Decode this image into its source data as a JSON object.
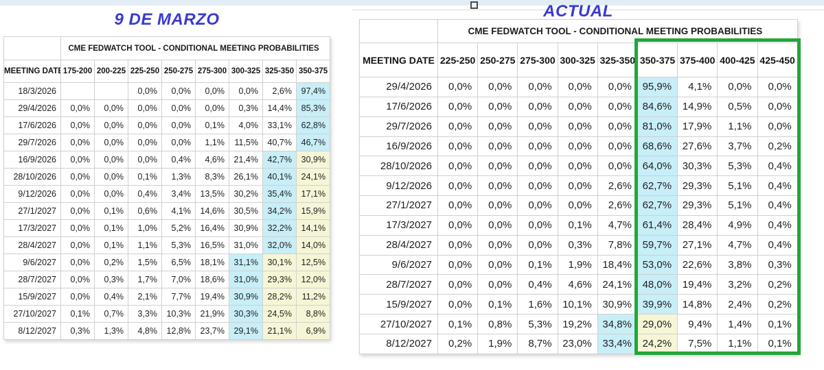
{
  "colors": {
    "title_blue": "#3a3bd0",
    "highlight_blue": "#c8eef8",
    "highlight_yellow": "#f6f6d7",
    "green_box": "#22a738",
    "top_strip": "#e2ecf4"
  },
  "chart_data": [
    {
      "type": "table",
      "title": "9 DE MARZO",
      "subtitle": "CME FEDWATCH TOOL - CONDITIONAL MEETING PROBABILITIES",
      "date_header": "MEETING DATE",
      "rate_columns": [
        "175-200",
        "200-225",
        "225-250",
        "250-275",
        "275-300",
        "300-325",
        "325-350",
        "350-375"
      ],
      "rows": [
        {
          "date": "18/3/2026",
          "values": [
            "",
            "",
            "0,0%",
            "0,0%",
            "0,0%",
            "0,0%",
            "2,6%",
            "97,4%"
          ],
          "hl": [
            "",
            "",
            "",
            "",
            "",
            "",
            "",
            "b"
          ]
        },
        {
          "date": "29/4/2026",
          "values": [
            "0,0%",
            "0,0%",
            "0,0%",
            "0,0%",
            "0,0%",
            "0,3%",
            "14,4%",
            "85,3%"
          ],
          "hl": [
            "",
            "",
            "",
            "",
            "",
            "",
            "",
            "b"
          ]
        },
        {
          "date": "17/6/2026",
          "values": [
            "0,0%",
            "0,0%",
            "0,0%",
            "0,0%",
            "0,1%",
            "4,0%",
            "33,1%",
            "62,8%"
          ],
          "hl": [
            "",
            "",
            "",
            "",
            "",
            "",
            "",
            "b"
          ]
        },
        {
          "date": "29/7/2026",
          "values": [
            "0,0%",
            "0,0%",
            "0,0%",
            "0,0%",
            "1,1%",
            "11,5%",
            "40,7%",
            "46,7%"
          ],
          "hl": [
            "",
            "",
            "",
            "",
            "",
            "",
            "",
            "b"
          ]
        },
        {
          "date": "16/9/2026",
          "values": [
            "0,0%",
            "0,0%",
            "0,0%",
            "0,4%",
            "4,6%",
            "21,4%",
            "42,7%",
            "30,9%"
          ],
          "hl": [
            "",
            "",
            "",
            "",
            "",
            "",
            "b",
            "y"
          ]
        },
        {
          "date": "28/10/2026",
          "values": [
            "0,0%",
            "0,0%",
            "0,1%",
            "1,3%",
            "8,3%",
            "26,1%",
            "40,1%",
            "24,1%"
          ],
          "hl": [
            "",
            "",
            "",
            "",
            "",
            "",
            "b",
            "y"
          ]
        },
        {
          "date": "9/12/2026",
          "values": [
            "0,0%",
            "0,0%",
            "0,4%",
            "3,4%",
            "13,5%",
            "30,2%",
            "35,4%",
            "17,1%"
          ],
          "hl": [
            "",
            "",
            "",
            "",
            "",
            "",
            "b",
            "y"
          ]
        },
        {
          "date": "27/1/2027",
          "values": [
            "0,0%",
            "0,1%",
            "0,6%",
            "4,1%",
            "14,6%",
            "30,5%",
            "34,2%",
            "15,9%"
          ],
          "hl": [
            "",
            "",
            "",
            "",
            "",
            "",
            "b",
            "y"
          ]
        },
        {
          "date": "17/3/2027",
          "values": [
            "0,0%",
            "0,1%",
            "1,0%",
            "5,2%",
            "16,4%",
            "30,9%",
            "32,2%",
            "14,1%"
          ],
          "hl": [
            "",
            "",
            "",
            "",
            "",
            "",
            "b",
            "y"
          ]
        },
        {
          "date": "28/4/2027",
          "values": [
            "0,0%",
            "0,1%",
            "1,1%",
            "5,3%",
            "16,5%",
            "31,0%",
            "32,0%",
            "14,0%"
          ],
          "hl": [
            "",
            "",
            "",
            "",
            "",
            "",
            "b",
            "y"
          ]
        },
        {
          "date": "9/6/2027",
          "values": [
            "0,0%",
            "0,2%",
            "1,5%",
            "6,5%",
            "18,1%",
            "31,1%",
            "30,1%",
            "12,5%"
          ],
          "hl": [
            "",
            "",
            "",
            "",
            "",
            "b",
            "y",
            "y"
          ]
        },
        {
          "date": "28/7/2027",
          "values": [
            "0,0%",
            "0,3%",
            "1,7%",
            "7,0%",
            "18,6%",
            "31,0%",
            "29,3%",
            "12,0%"
          ],
          "hl": [
            "",
            "",
            "",
            "",
            "",
            "b",
            "y",
            "y"
          ]
        },
        {
          "date": "15/9/2027",
          "values": [
            "0,0%",
            "0,4%",
            "2,1%",
            "7,7%",
            "19,4%",
            "30,9%",
            "28,2%",
            "11,2%"
          ],
          "hl": [
            "",
            "",
            "",
            "",
            "",
            "b",
            "y",
            "y"
          ]
        },
        {
          "date": "27/10/2027",
          "values": [
            "0,1%",
            "0,7%",
            "3,3%",
            "10,3%",
            "21,9%",
            "30,3%",
            "24,5%",
            "8,8%"
          ],
          "hl": [
            "",
            "",
            "",
            "",
            "",
            "b",
            "y",
            "y"
          ]
        },
        {
          "date": "8/12/2027",
          "values": [
            "0,3%",
            "1,3%",
            "4,8%",
            "12,8%",
            "23,7%",
            "29,1%",
            "21,1%",
            "6,9%"
          ],
          "hl": [
            "",
            "",
            "",
            "",
            "",
            "b",
            "y",
            "y"
          ]
        }
      ]
    },
    {
      "type": "table",
      "title": "ACTUAL",
      "subtitle": "CME FEDWATCH TOOL - CONDITIONAL MEETING PROBABILITIES",
      "date_header": "MEETING DATE",
      "rate_columns": [
        "225-250",
        "250-275",
        "275-300",
        "300-325",
        "325-350",
        "350-375",
        "375-400",
        "400-425",
        "425-450"
      ],
      "rows": [
        {
          "date": "29/4/2026",
          "values": [
            "0,0%",
            "0,0%",
            "0,0%",
            "0,0%",
            "0,0%",
            "95,9%",
            "4,1%",
            "0,0%",
            "0,0%"
          ],
          "hl": [
            "",
            "",
            "",
            "",
            "",
            "b",
            "",
            "",
            ""
          ]
        },
        {
          "date": "17/6/2026",
          "values": [
            "0,0%",
            "0,0%",
            "0,0%",
            "0,0%",
            "0,0%",
            "84,6%",
            "14,9%",
            "0,5%",
            "0,0%"
          ],
          "hl": [
            "",
            "",
            "",
            "",
            "",
            "b",
            "",
            "",
            ""
          ]
        },
        {
          "date": "29/7/2026",
          "values": [
            "0,0%",
            "0,0%",
            "0,0%",
            "0,0%",
            "0,0%",
            "81,0%",
            "17,9%",
            "1,1%",
            "0,0%"
          ],
          "hl": [
            "",
            "",
            "",
            "",
            "",
            "b",
            "",
            "",
            ""
          ]
        },
        {
          "date": "16/9/2026",
          "values": [
            "0,0%",
            "0,0%",
            "0,0%",
            "0,0%",
            "0,0%",
            "68,6%",
            "27,6%",
            "3,7%",
            "0,2%"
          ],
          "hl": [
            "",
            "",
            "",
            "",
            "",
            "b",
            "",
            "",
            ""
          ]
        },
        {
          "date": "28/10/2026",
          "values": [
            "0,0%",
            "0,0%",
            "0,0%",
            "0,0%",
            "0,0%",
            "64,0%",
            "30,3%",
            "5,3%",
            "0,4%"
          ],
          "hl": [
            "",
            "",
            "",
            "",
            "",
            "b",
            "",
            "",
            ""
          ]
        },
        {
          "date": "9/12/2026",
          "values": [
            "0,0%",
            "0,0%",
            "0,0%",
            "0,0%",
            "2,6%",
            "62,7%",
            "29,3%",
            "5,1%",
            "0,4%"
          ],
          "hl": [
            "",
            "",
            "",
            "",
            "",
            "b",
            "",
            "",
            ""
          ]
        },
        {
          "date": "27/1/2027",
          "values": [
            "0,0%",
            "0,0%",
            "0,0%",
            "0,0%",
            "2,6%",
            "62,7%",
            "29,3%",
            "5,1%",
            "0,4%"
          ],
          "hl": [
            "",
            "",
            "",
            "",
            "",
            "b",
            "",
            "",
            ""
          ]
        },
        {
          "date": "17/3/2027",
          "values": [
            "0,0%",
            "0,0%",
            "0,0%",
            "0,1%",
            "4,7%",
            "61,4%",
            "28,4%",
            "4,9%",
            "0,4%"
          ],
          "hl": [
            "",
            "",
            "",
            "",
            "",
            "b",
            "",
            "",
            ""
          ]
        },
        {
          "date": "28/4/2027",
          "values": [
            "0,0%",
            "0,0%",
            "0,0%",
            "0,3%",
            "7,8%",
            "59,7%",
            "27,1%",
            "4,7%",
            "0,4%"
          ],
          "hl": [
            "",
            "",
            "",
            "",
            "",
            "b",
            "",
            "",
            ""
          ]
        },
        {
          "date": "9/6/2027",
          "values": [
            "0,0%",
            "0,0%",
            "0,1%",
            "1,9%",
            "18,4%",
            "53,0%",
            "22,6%",
            "3,8%",
            "0,3%"
          ],
          "hl": [
            "",
            "",
            "",
            "",
            "",
            "b",
            "",
            "",
            ""
          ]
        },
        {
          "date": "28/7/2027",
          "values": [
            "0,0%",
            "0,0%",
            "0,4%",
            "4,6%",
            "24,1%",
            "48,0%",
            "19,4%",
            "3,2%",
            "0,2%"
          ],
          "hl": [
            "",
            "",
            "",
            "",
            "",
            "b",
            "",
            "",
            ""
          ]
        },
        {
          "date": "15/9/2027",
          "values": [
            "0,0%",
            "0,1%",
            "1,6%",
            "10,1%",
            "30,9%",
            "39,9%",
            "14,8%",
            "2,4%",
            "0,2%"
          ],
          "hl": [
            "",
            "",
            "",
            "",
            "",
            "b",
            "",
            "",
            ""
          ]
        },
        {
          "date": "27/10/2027",
          "values": [
            "0,1%",
            "0,8%",
            "5,3%",
            "19,2%",
            "34,8%",
            "29,0%",
            "9,4%",
            "1,4%",
            "0,1%"
          ],
          "hl": [
            "",
            "",
            "",
            "",
            "b",
            "y",
            "",
            "",
            ""
          ]
        },
        {
          "date": "8/12/2027",
          "values": [
            "0,2%",
            "1,9%",
            "8,7%",
            "23,0%",
            "33,4%",
            "24,2%",
            "7,5%",
            "1,1%",
            "0,1%"
          ],
          "hl": [
            "",
            "",
            "",
            "",
            "b",
            "y",
            "",
            "",
            ""
          ]
        }
      ]
    }
  ]
}
